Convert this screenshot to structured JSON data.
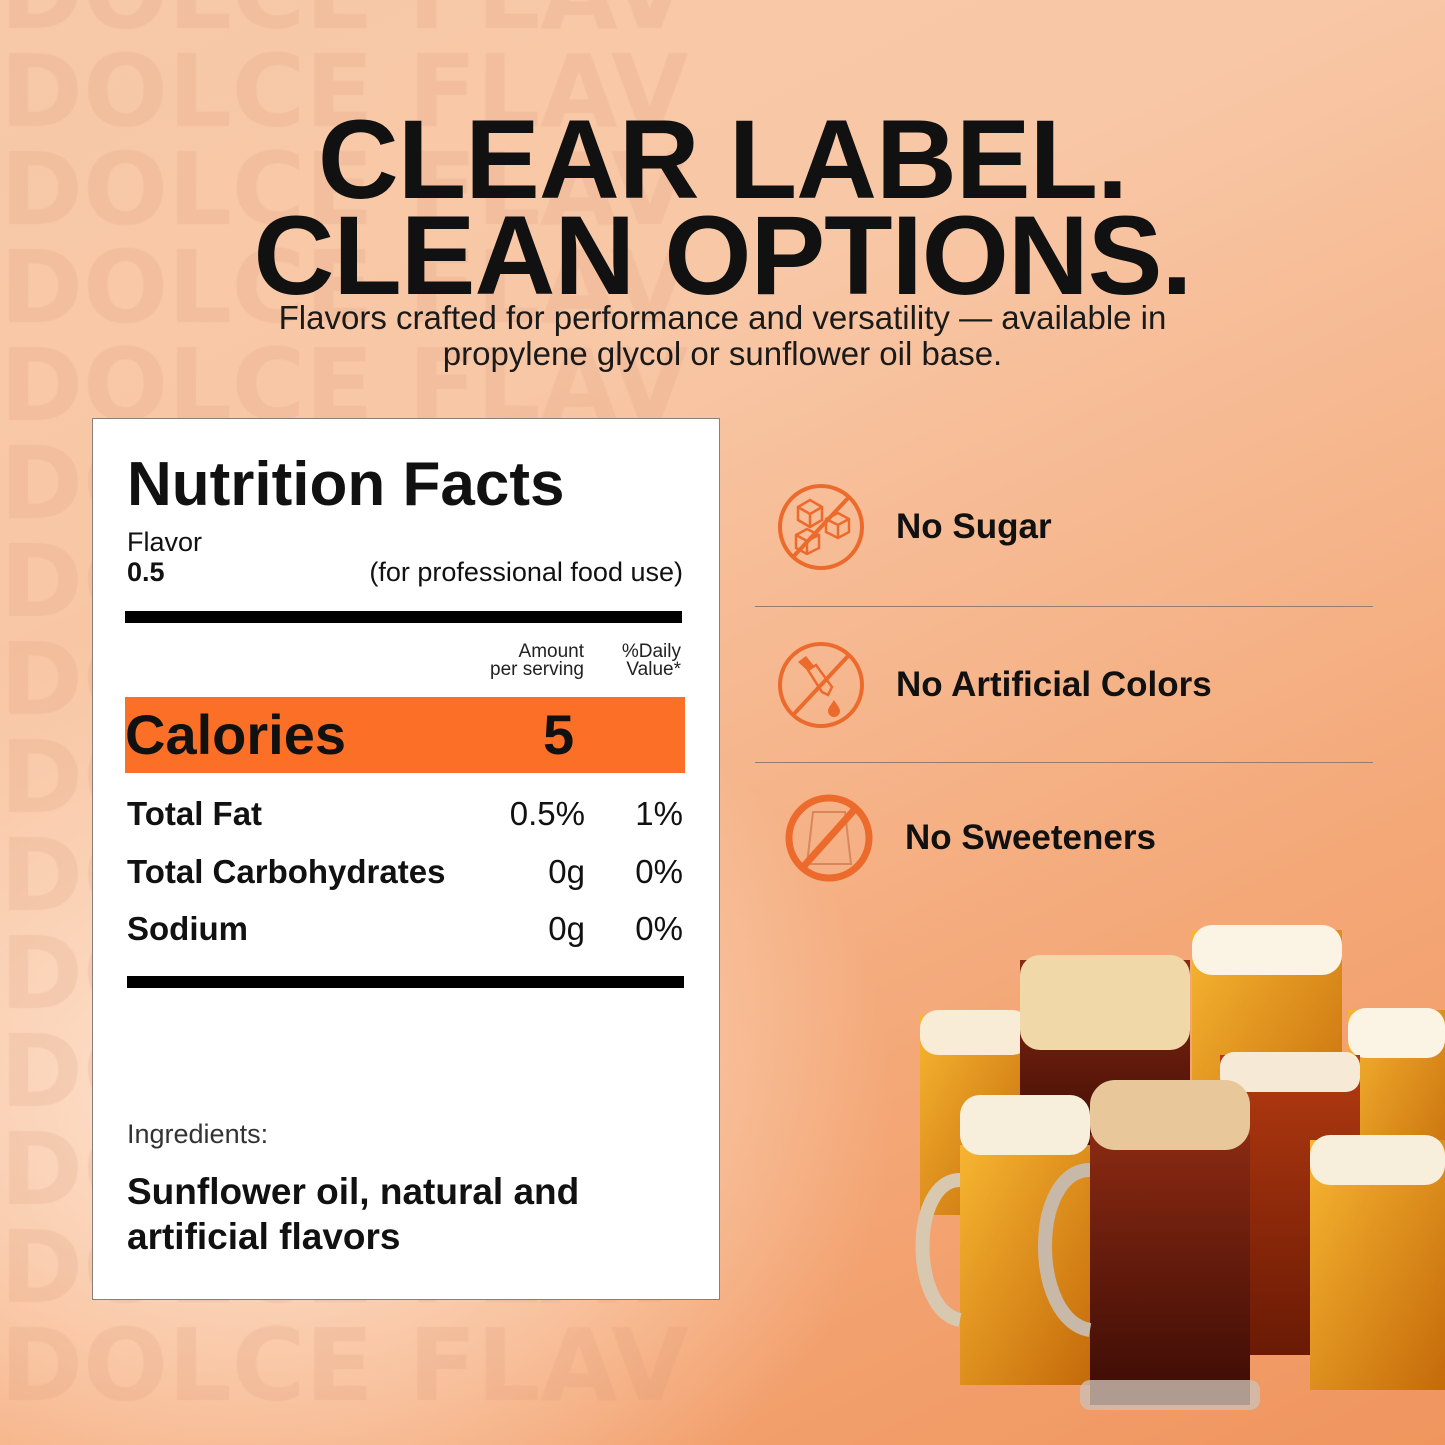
{
  "watermark": "DOLCE FLAV",
  "headline": {
    "line1": "CLEAR LABEL.",
    "line2": "CLEAN OPTIONS."
  },
  "subtitle": {
    "line1": "Flavors crafted for performance and versatility — available in",
    "line2": "propylene glycol or sunflower oil base."
  },
  "nutrition": {
    "title": "Nutrition Facts",
    "flavor_label": "Flavor",
    "flavor_value": "0.5",
    "use_note": "(for professional food use)",
    "col_amount": [
      "Amount",
      "per serving"
    ],
    "col_daily": [
      "%Daily",
      "Value*"
    ],
    "calories_label": "Calories",
    "calories_value": "5",
    "rows": [
      {
        "name": "Total Fat",
        "amount": "0.5%",
        "daily": "1%"
      },
      {
        "name": "Total Carbohydrates",
        "amount": "0g",
        "daily": "0%"
      },
      {
        "name": "Sodium",
        "amount": "0g",
        "daily": "0%"
      }
    ],
    "ingredients_label": "Ingredients:",
    "ingredients": [
      "Sunflower oil, natural and",
      "artificial flavors"
    ]
  },
  "claims": [
    {
      "label": "No Sugar",
      "icon": "no-sugar-cubes-icon"
    },
    {
      "label": "No Artificial Colors",
      "icon": "no-dropper-icon"
    },
    {
      "label": "No Sweeteners",
      "icon": "no-sweetener-bag-icon",
      "icon_text": "SWEETENER"
    }
  ],
  "colors": {
    "accent": "#fb7026",
    "icon": "#ec6a2c",
    "text": "#111111"
  }
}
